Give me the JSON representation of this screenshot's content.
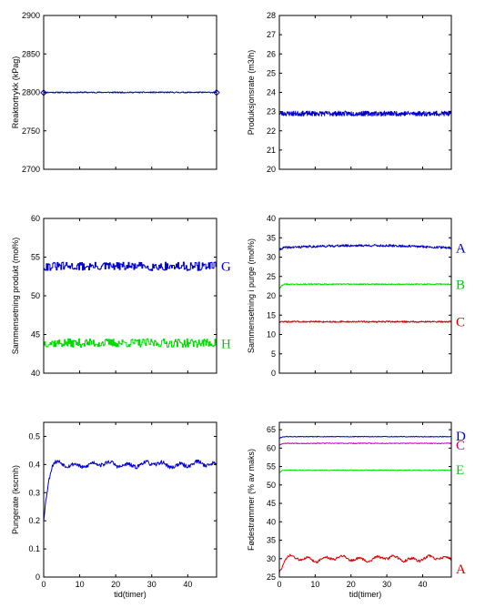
{
  "chart_data": [
    {
      "id": "p1",
      "type": "line",
      "ylabel": "Reaktortrykk (kPag)",
      "xlabel": "",
      "xlim": [
        0,
        48
      ],
      "ylim": [
        2700,
        2900
      ],
      "xticks": [
        0,
        10,
        20,
        30,
        40
      ],
      "yticks": [
        2700,
        2750,
        2800,
        2850,
        2900
      ],
      "show_xtick_labels": false,
      "series": [
        {
          "tag": "",
          "color": "#0000cc",
          "base": 2800,
          "noise": 0.8,
          "ramp_to": 2805,
          "ramp_time": 0.3,
          "drift": 0,
          "seed": 11,
          "step": 0.12,
          "markers": true
        }
      ]
    },
    {
      "id": "p2",
      "type": "line",
      "ylabel": "Produksjonsrate (m3/h)",
      "xlabel": "",
      "xlim": [
        0,
        48
      ],
      "ylim": [
        20,
        28
      ],
      "xticks": [
        0,
        10,
        20,
        30,
        40
      ],
      "yticks": [
        20,
        21,
        22,
        23,
        24,
        25,
        26,
        27,
        28
      ],
      "show_xtick_labels": false,
      "series": [
        {
          "tag": "",
          "color": "#0000cc",
          "base": 22.9,
          "noise": 0.13,
          "drift": 0,
          "seed": 23,
          "step": 0.1
        }
      ]
    },
    {
      "id": "p3",
      "type": "line",
      "ylabel": "Sammensetning produkt (mol%)",
      "xlabel": "",
      "xlim": [
        0,
        48
      ],
      "ylim": [
        40,
        60
      ],
      "xticks": [
        0,
        10,
        20,
        30,
        40
      ],
      "yticks": [
        40,
        45,
        50,
        55,
        60
      ],
      "show_xtick_labels": false,
      "series": [
        {
          "tag": "G",
          "tag_value": 53.8,
          "color": "#0000cc",
          "tag_color": "#0000cc",
          "base": 53.8,
          "noise": 0.55,
          "drift": 0,
          "seed": 31,
          "step": 0.25,
          "stairs": true
        },
        {
          "tag": "H",
          "tag_value": 43.8,
          "color": "#00dd00",
          "tag_color": "#00cc00",
          "base": 43.9,
          "noise": 0.55,
          "drift": 0,
          "seed": 37,
          "step": 0.25,
          "stairs": true
        }
      ]
    },
    {
      "id": "p4",
      "type": "line",
      "ylabel": "Sammensetning i purge (mol%)",
      "xlabel": "",
      "xlim": [
        0,
        48
      ],
      "ylim": [
        0,
        40
      ],
      "xticks": [
        0,
        10,
        20,
        30,
        40
      ],
      "yticks": [
        0,
        5,
        10,
        15,
        20,
        25,
        30,
        35,
        40
      ],
      "show_xtick_labels": false,
      "series": [
        {
          "tag": "A",
          "tag_value": 32.3,
          "color": "#0000cc",
          "tag_color": "#0000cc",
          "base": 32.4,
          "start": 31.8,
          "noise": 0.3,
          "drift": 0.6,
          "seed": 41,
          "step": 0.12
        },
        {
          "tag": "B",
          "tag_value": 23.0,
          "color": "#00dd00",
          "tag_color": "#00cc00",
          "base": 23.0,
          "start": 21.8,
          "noise": 0.15,
          "drift": 0,
          "seed": 43,
          "step": 0.12
        },
        {
          "tag": "C",
          "tag_value": 13.3,
          "color": "#dd0000",
          "tag_color": "#cc0000",
          "base": 13.3,
          "noise": 0.2,
          "drift": 0,
          "seed": 47,
          "step": 0.12
        }
      ]
    },
    {
      "id": "p5",
      "type": "line",
      "ylabel": "Pungerate (kscmh)",
      "xlabel": "tid(timer)",
      "xlim": [
        0,
        48
      ],
      "ylim": [
        0,
        0.55
      ],
      "xticks": [
        0,
        10,
        20,
        30,
        40
      ],
      "yticks": [
        0,
        0.1,
        0.2,
        0.3,
        0.4,
        0.5
      ],
      "ytick_labels": [
        "0",
        "0.1",
        "0.2",
        "0.3",
        "0.4",
        "0.5"
      ],
      "show_xtick_labels": true,
      "series": [
        {
          "tag": "",
          "color": "#0000cc",
          "base": 0.4,
          "start": 0.2,
          "ramp_time": 3,
          "noise": 0.007,
          "drift": 0,
          "seed": 53,
          "step": 0.15,
          "wave": 0.008
        }
      ]
    },
    {
      "id": "p6",
      "type": "line",
      "ylabel": "Fødestrømmer (% av maks)",
      "xlabel": "tid(timer)",
      "xlim": [
        0,
        48
      ],
      "ylim": [
        25,
        67
      ],
      "xticks": [
        0,
        10,
        20,
        30,
        40
      ],
      "yticks": [
        25,
        30,
        35,
        40,
        45,
        50,
        55,
        60,
        65
      ],
      "show_xtick_labels": true,
      "series": [
        {
          "tag": "D",
          "tag_value": 63.3,
          "color": "#0000cc",
          "tag_color": "#0000cc",
          "base": 63.1,
          "start": 62.6,
          "noise": 0.1,
          "drift": 0,
          "seed": 61,
          "step": 0.15
        },
        {
          "tag": "C",
          "tag_value": 60.8,
          "color": "#cc00cc",
          "tag_color": "#cc0066",
          "base": 61.3,
          "start": 60.8,
          "noise": 0.12,
          "drift": 0,
          "seed": 67,
          "step": 0.15
        },
        {
          "tag": "E",
          "tag_value": 54.2,
          "color": "#00dd00",
          "tag_color": "#00cc00",
          "base": 54.0,
          "start": 53.3,
          "noise": 0.12,
          "drift": 0,
          "seed": 71,
          "step": 0.15
        },
        {
          "tag": "A",
          "tag_value": 27.2,
          "color": "#dd0000",
          "tag_color": "#cc0000",
          "base": 30.0,
          "start": 26.5,
          "ramp_time": 3,
          "noise": 0.35,
          "drift": 0,
          "seed": 73,
          "step": 0.15,
          "wave": 0.6
        }
      ]
    }
  ]
}
